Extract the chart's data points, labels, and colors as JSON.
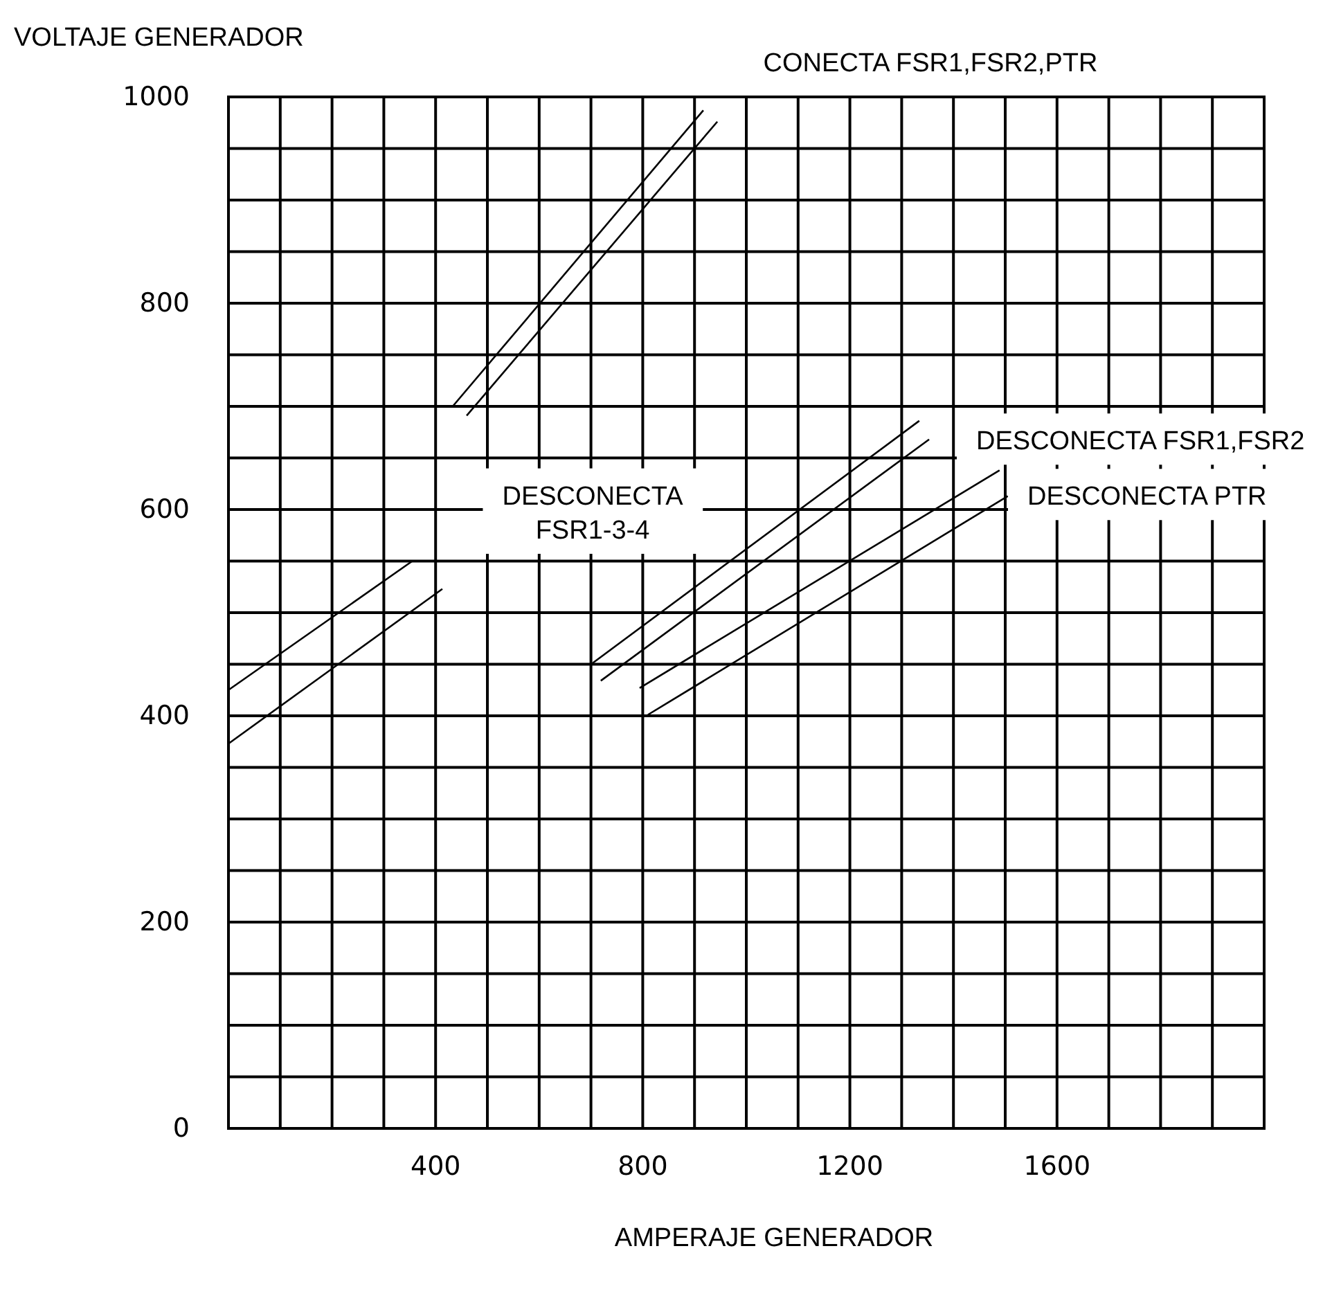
{
  "chart_data": {
    "type": "line",
    "xlabel": "AMPERAJE GENERADOR",
    "ylabel": "VOLTAJE GENERADOR",
    "xlim": [
      0,
      2000
    ],
    "ylim": [
      0,
      1000
    ],
    "xticks": [
      {
        "value": 0,
        "label": null
      },
      {
        "value": 100,
        "label": null
      },
      {
        "value": 200,
        "label": null
      },
      {
        "value": 300,
        "label": null
      },
      400,
      {
        "value": 500,
        "label": null
      },
      {
        "value": 600,
        "label": null
      },
      {
        "value": 700,
        "label": null
      },
      800,
      {
        "value": 900,
        "label": null
      },
      {
        "value": 1000,
        "label": null
      },
      {
        "value": 1100,
        "label": null
      },
      1200,
      {
        "value": 1300,
        "label": null
      },
      {
        "value": 1400,
        "label": null
      },
      {
        "value": 1500,
        "label": null
      },
      1600,
      {
        "value": 1700,
        "label": null
      },
      {
        "value": 1800,
        "label": null
      },
      {
        "value": 1900,
        "label": null
      },
      {
        "value": 2000,
        "label": null
      }
    ],
    "yticks": [
      0,
      {
        "value": 50,
        "label": null
      },
      {
        "value": 100,
        "label": null
      },
      {
        "value": 150,
        "label": null
      },
      200,
      {
        "value": 250,
        "label": null
      },
      {
        "value": 300,
        "label": null
      },
      {
        "value": 350,
        "label": null
      },
      400,
      {
        "value": 450,
        "label": null
      },
      {
        "value": 500,
        "label": null
      },
      {
        "value": 550,
        "label": null
      },
      600,
      {
        "value": 650,
        "label": null
      },
      {
        "value": 700,
        "label": null
      },
      {
        "value": 750,
        "label": null
      },
      800,
      {
        "value": 850,
        "label": null
      },
      {
        "value": 900,
        "label": null
      },
      {
        "value": 950,
        "label": null
      },
      1000
    ],
    "grid": true,
    "marker": "none",
    "line_style": "solid",
    "series": [
      {
        "color": "#000000",
        "x": [
          0,
          355
        ],
        "values": [
          425,
          550
        ]
      },
      {
        "color": "#000000",
        "x": [
          0,
          413
        ],
        "values": [
          373,
          523
        ]
      },
      {
        "color": "#000000",
        "x": [
          433,
          917
        ],
        "values": [
          700,
          987
        ]
      },
      {
        "color": "#000000",
        "x": [
          460,
          944
        ],
        "values": [
          691,
          976
        ]
      },
      {
        "color": "#000000",
        "x": [
          703,
          1334
        ],
        "values": [
          451,
          686
        ]
      },
      {
        "color": "#000000",
        "x": [
          719,
          1353
        ],
        "values": [
          434,
          668
        ]
      },
      {
        "color": "#000000",
        "x": [
          794,
          1489
        ],
        "values": [
          427,
          638
        ]
      },
      {
        "color": "#000000",
        "x": [
          810,
          1505
        ],
        "values": [
          401,
          613
        ]
      }
    ],
    "annotations": [
      "CONECTA FSR1,FSR2,PTR",
      "DESCONECTA\nFSR1-3-4",
      "DESCONECTA FSR1,FSR2",
      "DESCONECTA PTR"
    ]
  }
}
